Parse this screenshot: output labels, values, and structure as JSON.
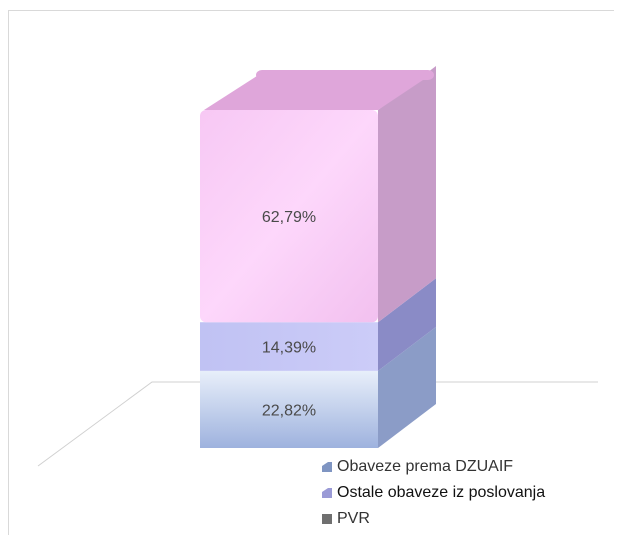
{
  "chart_data": {
    "type": "bar",
    "stacked": true,
    "percent": true,
    "three_d": true,
    "title": "",
    "xlabel": "",
    "ylabel": "",
    "segments": [
      {
        "name": "Obaveze prema DZUAIF",
        "value": 22.82,
        "label": "22,82%",
        "color": "#b0c4e8"
      },
      {
        "name": "Ostale obaveze iz poslovanja",
        "value": 14.39,
        "label": "14,39%",
        "color": "#c6c8f6"
      },
      {
        "name": "PVR",
        "value": 62.79,
        "label": "62,79%",
        "color": "#f5c8f2"
      }
    ],
    "legend": {
      "position": "bottom-right",
      "items": [
        {
          "label": "Obaveze prema DZUAIF",
          "color": "#7f95c2",
          "bold": false
        },
        {
          "label": "Ostale obaveze iz poslovanja",
          "color": "#9a9ad6",
          "bold": true
        },
        {
          "label": "PVR",
          "color": "#6f6f6f",
          "bold": false
        }
      ]
    },
    "gridlines": false
  }
}
